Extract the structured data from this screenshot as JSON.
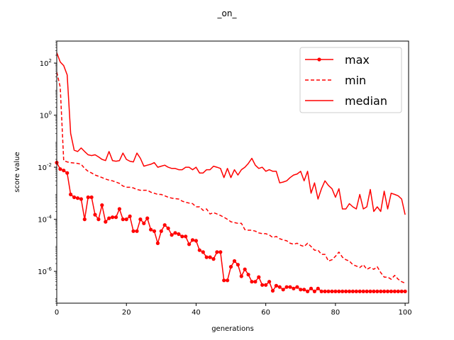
{
  "chart_data": {
    "type": "line",
    "title": "_on_",
    "xlabel": "generations",
    "ylabel": "score value",
    "yscale": "log",
    "xlim": [
      0,
      101
    ],
    "ylim": [
      6e-08,
      700
    ],
    "xticks": [
      0,
      20,
      40,
      60,
      80,
      100
    ],
    "xtick_labels": [
      "0",
      "20",
      "40",
      "60",
      "80",
      "100"
    ],
    "yticks": [
      1e-06,
      0.0001,
      0.01,
      1,
      100
    ],
    "ytick_labels": [
      "10^-6",
      "10^-4",
      "10^-2",
      "10^0",
      "10^2"
    ],
    "legend_position": "top-right",
    "x": [
      0,
      1,
      2,
      3,
      4,
      5,
      6,
      7,
      8,
      9,
      10,
      11,
      12,
      13,
      14,
      15,
      16,
      17,
      18,
      19,
      20,
      21,
      22,
      23,
      24,
      25,
      26,
      27,
      28,
      29,
      30,
      31,
      32,
      33,
      34,
      35,
      36,
      37,
      38,
      39,
      40,
      41,
      42,
      43,
      44,
      45,
      46,
      47,
      48,
      49,
      50,
      51,
      52,
      53,
      54,
      55,
      56,
      57,
      58,
      59,
      60,
      61,
      62,
      63,
      64,
      65,
      66,
      67,
      68,
      69,
      70,
      71,
      72,
      73,
      74,
      75,
      76,
      77,
      78,
      79,
      80,
      81,
      82,
      83,
      84,
      85,
      86,
      87,
      88,
      89,
      90,
      91,
      92,
      93,
      94,
      95,
      96,
      97,
      98,
      99,
      100
    ],
    "series": [
      {
        "name": "max",
        "color": "#ff0000",
        "style": "solid",
        "marker": "dot",
        "values": [
          0.015,
          0.0085,
          0.0075,
          0.006,
          0.0009,
          0.0007,
          0.00065,
          0.0006,
          0.0001,
          0.0007,
          0.0007,
          0.00015,
          0.0001,
          0.00035,
          8e-05,
          0.00011,
          0.00012,
          0.00012,
          0.00025,
          0.0001,
          0.0001,
          0.00013,
          3.5e-05,
          3.5e-05,
          0.0001,
          7e-05,
          0.00011,
          4e-05,
          3.5e-05,
          1.2e-05,
          3.5e-05,
          6e-05,
          4.5e-05,
          2.5e-05,
          3e-05,
          2.7e-05,
          2.2e-05,
          2.2e-05,
          1.1e-05,
          1.6e-05,
          1.5e-05,
          6.5e-06,
          5.5e-06,
          3.5e-06,
          3.5e-06,
          3e-06,
          5.5e-06,
          5.5e-06,
          4.5e-07,
          4.5e-07,
          1.5e-06,
          2.5e-06,
          1.8e-06,
          6.5e-07,
          1.2e-06,
          7.5e-07,
          4e-07,
          4e-07,
          6e-07,
          3e-07,
          3e-07,
          4e-07,
          1.8e-07,
          2.8e-07,
          2.5e-07,
          2e-07,
          2.5e-07,
          2.5e-07,
          2.2e-07,
          2.5e-07,
          2e-07,
          2e-07,
          1.7e-07,
          2.2e-07,
          1.7e-07,
          2.2e-07,
          1.7e-07,
          1.7e-07,
          1.7e-07,
          1.7e-07,
          1.7e-07,
          1.7e-07,
          1.7e-07,
          1.7e-07,
          1.7e-07,
          1.7e-07,
          1.7e-07,
          1.7e-07,
          1.7e-07,
          1.7e-07,
          1.7e-07,
          1.7e-07,
          1.7e-07,
          1.7e-07,
          1.7e-07,
          1.7e-07,
          1.7e-07,
          1.7e-07,
          1.7e-07,
          1.7e-07,
          1.7e-07
        ]
      },
      {
        "name": "min",
        "color": "#ff0000",
        "style": "dashed",
        "marker": "none",
        "values": [
          45,
          12,
          0.018,
          0.016,
          0.015,
          0.0145,
          0.014,
          0.013,
          0.009,
          0.007,
          0.006,
          0.005,
          0.0045,
          0.004,
          0.0035,
          0.0032,
          0.003,
          0.0027,
          0.0024,
          0.0019,
          0.0017,
          0.0017,
          0.0016,
          0.0014,
          0.0013,
          0.0013,
          0.0013,
          0.0011,
          0.001,
          0.0009,
          0.0009,
          0.0008,
          0.0007,
          0.00065,
          0.00062,
          0.0006,
          0.0005,
          0.00045,
          0.00042,
          0.0004,
          0.0003,
          0.0003,
          0.00022,
          0.00025,
          0.00016,
          0.00018,
          0.00016,
          0.00014,
          0.00012,
          0.0001,
          8e-05,
          7.5e-05,
          7e-05,
          7e-05,
          4e-05,
          3.8e-05,
          3.8e-05,
          3.5e-05,
          3e-05,
          2.8e-05,
          2.8e-05,
          2.5e-05,
          2e-05,
          2.2e-05,
          1.8e-05,
          1.6e-05,
          1.5e-05,
          1.2e-05,
          1.1e-05,
          1.2e-05,
          1e-05,
          9e-06,
          1.2e-05,
          9e-06,
          6.5e-06,
          6.5e-06,
          4.5e-06,
          4.5e-06,
          2.5e-06,
          2.8e-06,
          3.8e-06,
          5.5e-06,
          3.5e-06,
          2.8e-06,
          2.5e-06,
          1.8e-06,
          1.6e-06,
          1.4e-06,
          1.8e-06,
          1.2e-06,
          1.4e-06,
          1.2e-06,
          1.5e-06,
          9e-07,
          6e-07,
          6e-07,
          5e-07,
          7e-07,
          5e-07,
          4e-07,
          3.5e-07
        ]
      },
      {
        "name": "median",
        "color": "#ff0000",
        "style": "solid",
        "marker": "none",
        "values": [
          250,
          110,
          80,
          35,
          0.2,
          0.045,
          0.04,
          0.055,
          0.04,
          0.03,
          0.028,
          0.03,
          0.025,
          0.02,
          0.018,
          0.04,
          0.018,
          0.017,
          0.018,
          0.035,
          0.02,
          0.017,
          0.016,
          0.035,
          0.022,
          0.011,
          0.012,
          0.013,
          0.015,
          0.01,
          0.011,
          0.012,
          0.01,
          0.009,
          0.009,
          0.008,
          0.008,
          0.01,
          0.01,
          0.008,
          0.01,
          0.006,
          0.006,
          0.008,
          0.008,
          0.011,
          0.01,
          0.009,
          0.004,
          0.009,
          0.004,
          0.008,
          0.005,
          0.008,
          0.01,
          0.014,
          0.022,
          0.012,
          0.009,
          0.01,
          0.007,
          0.008,
          0.007,
          0.007,
          0.0025,
          0.0027,
          0.003,
          0.004,
          0.005,
          0.0055,
          0.007,
          0.003,
          0.007,
          0.001,
          0.0025,
          0.0006,
          0.0015,
          0.003,
          0.002,
          0.0015,
          0.0007,
          0.0015,
          0.00025,
          0.00025,
          0.0004,
          0.0003,
          0.00025,
          0.0009,
          0.00025,
          0.0003,
          0.0014,
          0.0002,
          0.0003,
          0.0002,
          0.0012,
          0.00025,
          0.001,
          0.0009,
          0.0008,
          0.0006,
          0.00015
        ]
      }
    ]
  }
}
